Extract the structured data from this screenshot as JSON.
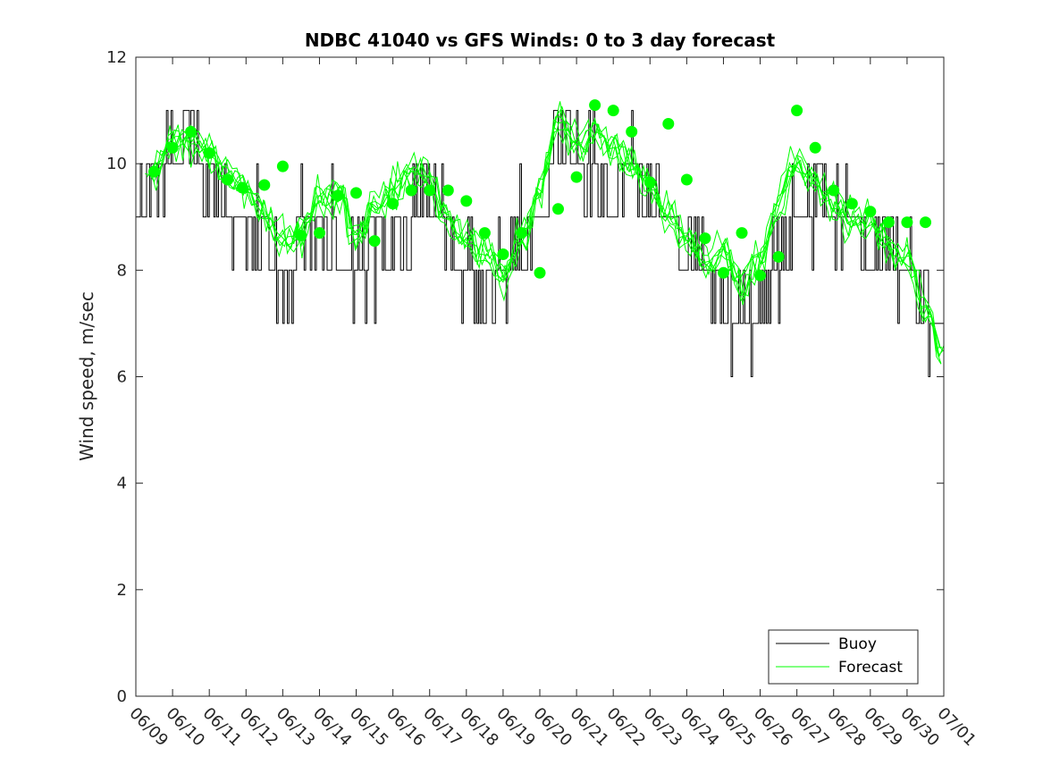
{
  "chart_data": {
    "type": "line",
    "title": "NDBC 41040 vs GFS Winds: 0 to 3 day forecast",
    "xlabel": "",
    "ylabel": "Wind speed, m/sec",
    "ylim": [
      0,
      12
    ],
    "yticks": [
      0,
      2,
      4,
      6,
      8,
      10,
      12
    ],
    "xticks": [
      "06/09",
      "06/10",
      "06/11",
      "06/12",
      "06/13",
      "06/14",
      "06/15",
      "06/16",
      "06/17",
      "06/18",
      "06/19",
      "06/20",
      "06/21",
      "06/22",
      "06/23",
      "06/24",
      "06/25",
      "06/26",
      "06/27",
      "06/28",
      "06/29",
      "06/30",
      "07/01"
    ],
    "x_unit": "days since 06/09 00:00",
    "grid": false,
    "legend_position": "bottom-right",
    "colors": {
      "buoy": "#000000",
      "forecast": "#00ff00"
    },
    "series": [
      {
        "name": "Buoy",
        "style": "line",
        "x": [
          0,
          0.5,
          1,
          1.5,
          2,
          2.5,
          3,
          3.5,
          4,
          4.5,
          5,
          5.5,
          6,
          6.5,
          7,
          7.5,
          8,
          8.5,
          9,
          9.5,
          10,
          10.5,
          11,
          11.5,
          12,
          12.5,
          13,
          13.5,
          14,
          14.5,
          15,
          15.5,
          16,
          16.5,
          17,
          17.5,
          18,
          18.5,
          19,
          19.5,
          20,
          20.5,
          21,
          21.5,
          22
        ],
        "values": [
          9.5,
          10,
          10.5,
          10.5,
          9.5,
          9,
          9,
          8.5,
          7.5,
          8.5,
          8.5,
          8.5,
          8,
          8.5,
          8.5,
          9,
          9.5,
          8.5,
          8,
          7.5,
          8,
          8.5,
          9,
          10.5,
          10,
          10,
          9.5,
          9.5,
          9,
          9,
          8.5,
          8,
          7.5,
          7,
          7.5,
          8,
          9,
          9.5,
          9,
          8.5,
          8.5,
          8.5,
          8,
          7,
          7
        ]
      },
      {
        "name": "Forecast",
        "style": "line",
        "x": [
          0,
          0.5,
          1,
          1.5,
          2,
          2.5,
          3,
          3.5,
          4,
          4.5,
          5,
          5.5,
          6,
          6.5,
          7,
          7.5,
          8,
          8.5,
          9,
          9.5,
          10,
          10.5,
          11,
          11.5,
          12,
          12.5,
          13,
          13.5,
          14,
          14.5,
          15,
          15.5,
          16,
          16.5,
          17,
          17.5,
          18,
          18.5,
          19,
          19.5,
          20,
          20.5,
          21,
          21.5,
          22
        ],
        "values": [
          9.6,
          9.9,
          10.4,
          10.5,
          10.2,
          9.7,
          9.5,
          9.0,
          8.6,
          8.7,
          9.3,
          9.4,
          8.6,
          9.2,
          9.5,
          9.8,
          9.7,
          8.9,
          8.5,
          8.3,
          7.9,
          8.6,
          9.5,
          10.8,
          10.4,
          10.6,
          10.3,
          10.0,
          9.6,
          9.0,
          8.6,
          8.1,
          8.4,
          7.7,
          8.2,
          9.2,
          10.1,
          9.6,
          9.2,
          8.9,
          8.9,
          8.4,
          8.2,
          7.3,
          6.4
        ]
      },
      {
        "name": "",
        "style": "markers",
        "x": [
          0.5,
          1,
          1.5,
          2,
          2.5,
          2.9,
          3.5,
          4,
          4.5,
          5,
          5.5,
          6,
          6.5,
          7,
          7.5,
          8,
          8.5,
          9,
          9.5,
          10,
          10.5,
          11,
          11.5,
          12,
          12.5,
          13,
          13.5,
          14,
          14.5,
          15,
          15.5,
          16,
          16.5,
          17,
          17.5,
          18,
          18.5,
          19,
          19.5,
          20,
          20.5,
          21,
          21.5
        ],
        "values": [
          9.85,
          10.3,
          10.6,
          10.2,
          9.7,
          9.55,
          9.6,
          9.95,
          8.65,
          8.7,
          9.4,
          9.45,
          8.55,
          9.25,
          9.5,
          9.5,
          9.5,
          9.3,
          8.7,
          8.3,
          8.7,
          7.95,
          9.15,
          9.75,
          11.1,
          11.0,
          10.6,
          9.65,
          10.75,
          9.7,
          8.6,
          7.95,
          8.7,
          7.9,
          8.25,
          11.0,
          10.3,
          9.5,
          9.25,
          9.1,
          8.9,
          8.9,
          8.9
        ]
      }
    ]
  }
}
